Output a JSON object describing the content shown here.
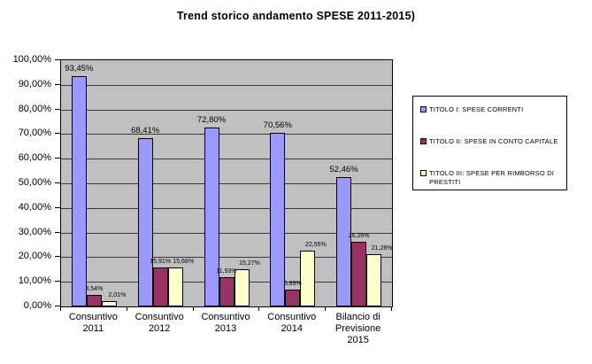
{
  "title": "Trend storico  andamento  SPESE 2011-2015)",
  "colors": {
    "plot_background": "#C0C0C0",
    "bar_border": "#000000",
    "series": [
      "#9999FF",
      "#993366",
      "#FFFFCC"
    ],
    "gridline": "#3a3a3a",
    "legend_background": "#FFFFFF"
  },
  "chart_data": {
    "type": "bar",
    "title": "Trend storico  andamento  SPESE 2011-2015)",
    "xlabel": "",
    "ylabel": "",
    "ylim": [
      0,
      100
    ],
    "ytick_step": 10,
    "grid": true,
    "plot_bg": "#C0C0C0",
    "legend_position": "right",
    "categories": [
      "Consuntivo 2011",
      "Consuntivo 2012",
      "Consuntivo 2013",
      "Consuntivo 2014",
      "Bilancio di Previsione 2015"
    ],
    "ytick_labels": [
      "100,00%",
      "90,00%",
      "80,00%",
      "70,00%",
      "60,00%",
      "50,00%",
      "40,00%",
      "30,00%",
      "20,00%",
      "10,00%",
      "0,00%"
    ],
    "series": [
      {
        "name": "TITOLO I: SPESE CORRENTI",
        "color": "#9999FF",
        "values": [
          93.45,
          68.41,
          72.8,
          70.56,
          52.46
        ],
        "labels": [
          "93,45%",
          "68,41%",
          "72,80%",
          "70,56%",
          "52,46%"
        ]
      },
      {
        "name": "TITOLO II: SPESE  IN CONTO CAPITALE",
        "color": "#993366",
        "values": [
          4.54,
          15.91,
          11.93,
          6.89,
          26.26
        ],
        "labels": [
          "4,54%",
          "15,91%",
          "11,93%",
          "6,89%",
          "26,26%"
        ]
      },
      {
        "name": "TITOLO III: SPESE PER RIMBORSO DI PRESTITI",
        "color": "#FFFFCC",
        "values": [
          2.01,
          15.68,
          15.27,
          22.55,
          21.28
        ],
        "labels": [
          "2,01%",
          "15,68%",
          "15,27%",
          "22,55%",
          "21,28%"
        ]
      }
    ]
  }
}
